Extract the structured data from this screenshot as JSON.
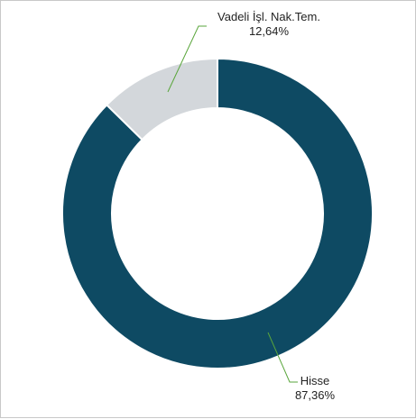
{
  "chart_data": {
    "type": "pie",
    "donut": true,
    "slices": [
      {
        "label": "Hisse",
        "value": 87.36,
        "display": "87,36%",
        "color": "#0e4a63"
      },
      {
        "label": "Vadeli İşl. Nak.Tem.",
        "value": 12.64,
        "display": "12,64%",
        "color": "#d3d7db"
      }
    ],
    "leader_color": "#5aa63c"
  }
}
